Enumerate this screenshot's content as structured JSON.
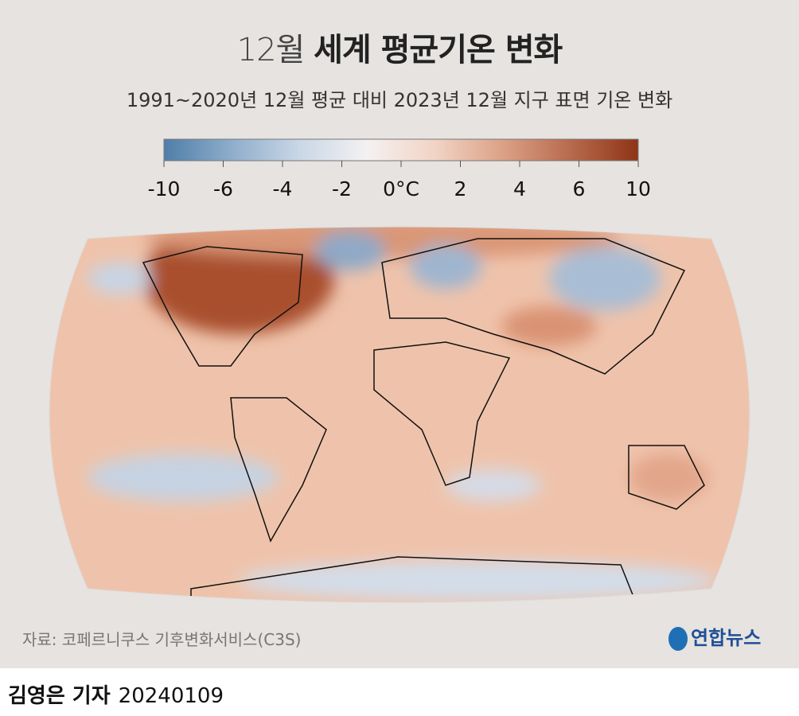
{
  "header": {
    "title_prefix": "12월",
    "title_main": "세계 평균기온 변화",
    "subtitle": "1991~2020년 12월 평균 대비 2023년 12월 지구 표면 기온 변화"
  },
  "colorbar": {
    "colors": [
      "#4f7ea8",
      "#8fadcb",
      "#c9d7e6",
      "#f4f1f2",
      "#f1d4c4",
      "#dba187",
      "#b86a4d",
      "#8e3417"
    ],
    "ticks": [
      -10,
      -6,
      -4,
      -2,
      {
        "value": 0,
        "label": "0°C"
      },
      2,
      4,
      6,
      10
    ]
  },
  "footer": {
    "source": "자료: 코페르니쿠스 기후변화서비스(C3S)",
    "logo": "연합뉴스",
    "reporter": "김영은 기자",
    "date": "20240109"
  }
}
